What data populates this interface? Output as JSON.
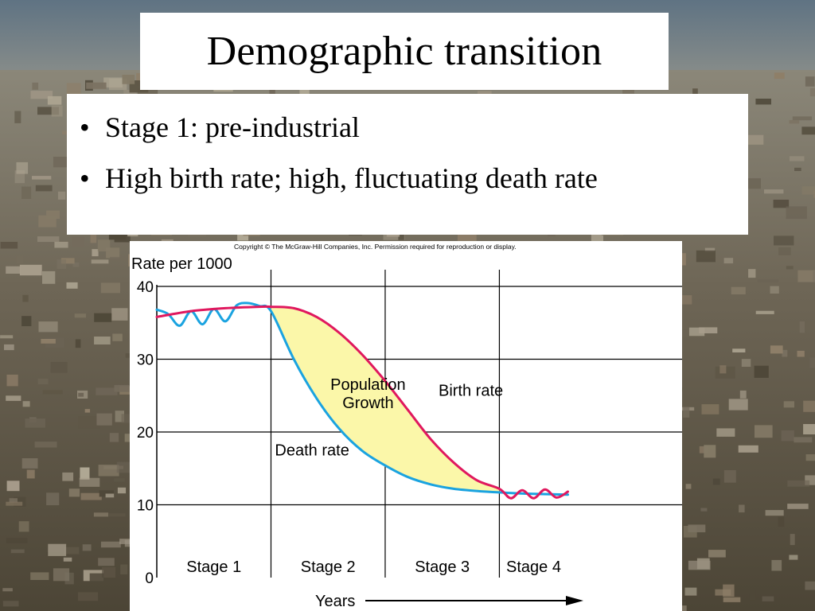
{
  "slide": {
    "title": "Demographic transition",
    "bullets": [
      "Stage 1: pre-industrial",
      "High birth rate; high, fluctuating death rate"
    ]
  },
  "chart_data": {
    "type": "line",
    "copyright": "Copyright © The McGraw-Hill Companies, Inc. Permission required for reproduction or display.",
    "ylabel": "Rate per 1000",
    "xlabel": "Years",
    "ylim": [
      0,
      40
    ],
    "yticks": [
      0,
      10,
      20,
      30,
      40
    ],
    "xlim": [
      0,
      4.6
    ],
    "grid": true,
    "stages": [
      {
        "label": "Stage 1",
        "start": 0,
        "end": 1
      },
      {
        "label": "Stage 2",
        "start": 1,
        "end": 2
      },
      {
        "label": "Stage 3",
        "start": 2,
        "end": 3
      },
      {
        "label": "Stage 4",
        "start": 3,
        "end": 3.6
      }
    ],
    "series": [
      {
        "name": "Birth rate",
        "color": "#e0185e",
        "x": [
          0,
          0.3,
          0.6,
          0.9,
          1.0,
          1.2,
          1.4,
          1.6,
          1.8,
          2.0,
          2.2,
          2.4,
          2.6,
          2.8,
          3.0,
          3.1,
          3.2,
          3.3,
          3.4,
          3.5,
          3.6
        ],
        "values": [
          35.8,
          36.6,
          37.0,
          37.2,
          37.2,
          37.0,
          35.8,
          33.6,
          30.6,
          27.0,
          23.0,
          19.0,
          15.8,
          13.4,
          12.2,
          10.9,
          12.0,
          10.9,
          12.1,
          11.0,
          11.8
        ]
      },
      {
        "name": "Death rate",
        "color": "#1aa3e0",
        "x": [
          0,
          0.1,
          0.2,
          0.3,
          0.4,
          0.5,
          0.6,
          0.7,
          0.8,
          0.9,
          1.0,
          1.2,
          1.4,
          1.6,
          1.8,
          2.0,
          2.2,
          2.4,
          2.6,
          2.8,
          3.0,
          3.3,
          3.6
        ],
        "values": [
          36.8,
          36.2,
          34.6,
          36.6,
          34.8,
          36.9,
          35.2,
          37.4,
          37.7,
          37.3,
          36.6,
          30.0,
          24.6,
          20.4,
          17.4,
          15.4,
          13.8,
          12.8,
          12.2,
          11.9,
          11.7,
          11.5,
          11.4
        ]
      }
    ],
    "annotations": [
      {
        "text": "Population",
        "x": 1.85,
        "y": 25.8
      },
      {
        "text": "Growth",
        "x": 1.85,
        "y": 23.3
      },
      {
        "text": "Birth rate",
        "x": 2.75,
        "y": 25.0
      },
      {
        "text": "Death rate",
        "x": 1.36,
        "y": 16.8
      }
    ],
    "colors": {
      "growth_fill": "#fbf7a9",
      "grid": "#000000"
    }
  }
}
